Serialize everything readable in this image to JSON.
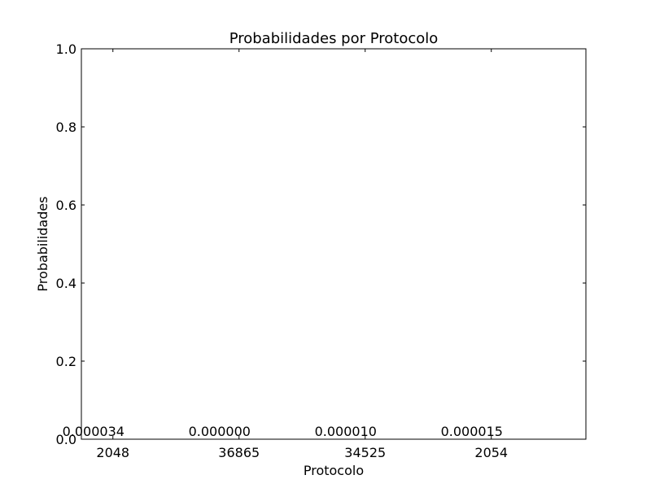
{
  "chart_data": {
    "type": "bar",
    "title": "Probabilidades por Protocolo",
    "xlabel": "Protocolo",
    "ylabel": "Probabilidades",
    "categories": [
      "2048",
      "36865",
      "34525",
      "2054"
    ],
    "values": [
      3.4e-05,
      0.0,
      1e-05,
      1.5e-05
    ],
    "data_labels": [
      "0.000034",
      "0.000000",
      "0.000010",
      "0.000015"
    ],
    "ylim": [
      0,
      1
    ],
    "yticks": [
      0.0,
      0.2,
      0.4,
      0.6,
      0.8,
      1.0
    ],
    "ytick_labels": [
      "0.0",
      "0.2",
      "0.4",
      "0.6",
      "0.8",
      "1.0"
    ],
    "grid": false,
    "colors": {
      "axes": "#000000",
      "background": "#ffffff",
      "bar": "#0000ff"
    }
  }
}
